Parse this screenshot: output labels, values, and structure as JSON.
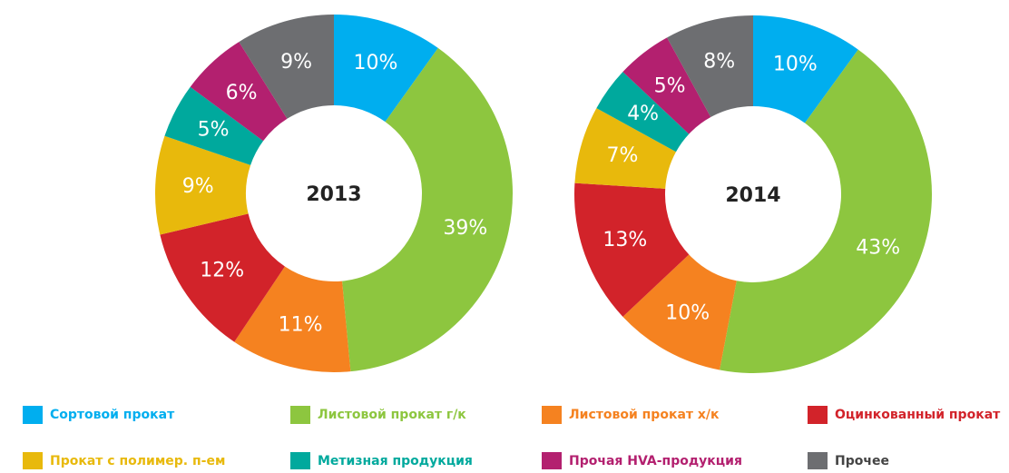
{
  "chart_data": [
    {
      "type": "pie",
      "title": "2013",
      "categories": [
        "Сортовой прокат",
        "Листовой прокат г/к",
        "Листовой прокат х/к",
        "Оцинкованный прокат",
        "Прокат с полимер. п-ем",
        "Метизная продукция",
        "Прочая HVA-продукция",
        "Прочее"
      ],
      "values": [
        10,
        39,
        11,
        12,
        9,
        5,
        6,
        9
      ],
      "value_labels": [
        "10%",
        "39%",
        "11%",
        "12%",
        "9%",
        "5%",
        "6%",
        "9%"
      ],
      "colors": [
        "#00aeef",
        "#8dc63f",
        "#f58220",
        "#d2232a",
        "#e8b90c",
        "#00a99d",
        "#b3206f",
        "#6d6e71"
      ]
    },
    {
      "type": "pie",
      "title": "2014",
      "categories": [
        "Сортовой прокат",
        "Листовой прокат г/к",
        "Листовой прокат х/к",
        "Оцинкованный прокат",
        "Прокат с полимер. п-ем",
        "Метизная продукция",
        "Прочая HVA-продукция",
        "Прочее"
      ],
      "values": [
        10,
        43,
        10,
        13,
        7,
        4,
        5,
        8
      ],
      "value_labels": [
        "10%",
        "43%",
        "10%",
        "13%",
        "7%",
        "4%",
        "5%",
        "8%"
      ],
      "colors": [
        "#00aeef",
        "#8dc63f",
        "#f58220",
        "#d2232a",
        "#e8b90c",
        "#00a99d",
        "#b3206f",
        "#6d6e71"
      ]
    }
  ]
}
